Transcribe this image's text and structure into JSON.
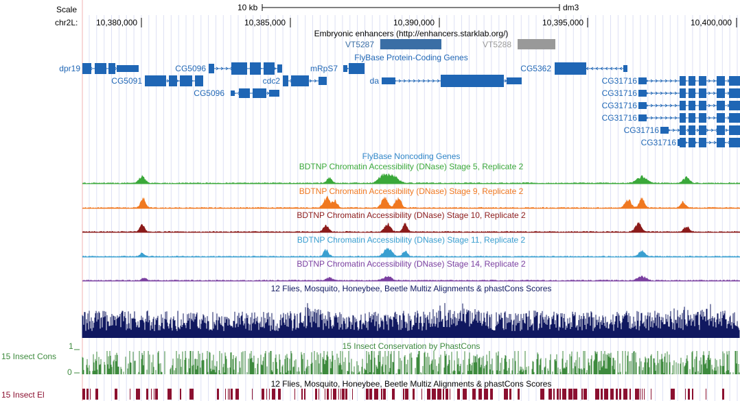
{
  "header": {
    "scale_label": "Scale",
    "scale_bar": "10 kb",
    "assembly": "dm3",
    "chrom": "chr2L:",
    "positions": [
      "10,380,000",
      "10,385,000",
      "10,390,000",
      "10,395,000",
      "10,400,000"
    ]
  },
  "tracks": {
    "enhancers": {
      "title": "Embryonic enhancers (http://enhancers.starklab.org/)",
      "items": [
        "VT5287",
        "VT5288"
      ],
      "colors": [
        "#3a6ea5",
        "#999999"
      ]
    },
    "flybase_coding": {
      "title": "FlyBase Protein-Coding Genes",
      "color": "#1f66b5",
      "genes": [
        "dpr19",
        "CG5091",
        "CG5096",
        "CG5096",
        "cdc2",
        "mRpS7",
        "da",
        "CG5362",
        "CG31716",
        "CG31716",
        "CG31716",
        "CG31716",
        "CG31716",
        "CG31716"
      ]
    },
    "flybase_noncoding": {
      "title": "FlyBase Noncoding Genes",
      "color": "#2f86c8"
    },
    "dnase": [
      {
        "title": "BDTNP Chromatin Accessibility (DNase) Stage 5, Replicate 2",
        "color": "#3aa83a"
      },
      {
        "title": "BDTNP Chromatin Accessibility (DNase) Stage 9, Replicate 2",
        "color": "#f07820"
      },
      {
        "title": "BDTNP Chromatin Accessibility (DNase) Stage 10, Replicate 2",
        "color": "#8b1a1a"
      },
      {
        "title": "BDTNP Chromatin Accessibility (DNase) Stage 11, Replicate 2",
        "color": "#3a9fd0"
      },
      {
        "title": "BDTNP Chromatin Accessibility (DNase) Stage 14, Replicate 2",
        "color": "#7a3fa0"
      }
    ],
    "multiz": {
      "title": "12 Flies, Mosquito, Honeybee, Beetle Multiz Alignments & phastCons Scores",
      "color": "#101860"
    },
    "phastcons": {
      "title": "15 Insect Conservation by PhastCons",
      "side_label": "15 Insect Cons",
      "ymax": "1",
      "ymin": "0",
      "color": "#3d8a3d"
    },
    "multiz2": {
      "title": "12 Flies, Mosquito, Honeybee, Beetle Multiz Alignments & phastCons Scores",
      "side_label": "15 Insect El",
      "color": "#8b1030"
    }
  }
}
